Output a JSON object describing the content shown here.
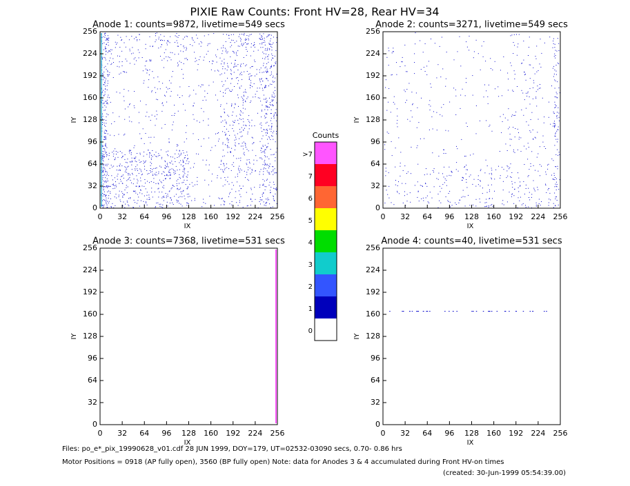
{
  "title": "PIXIE Raw Counts:  Front HV=28, Rear HV=34",
  "axes": {
    "xlabel": "IX",
    "ylabel": "IY",
    "xlim": [
      0,
      256
    ],
    "ylim": [
      0,
      256
    ],
    "ticks": [
      0,
      32,
      64,
      96,
      128,
      160,
      192,
      224,
      256
    ]
  },
  "panels": [
    {
      "title": "Anode 1: counts=9872, livetime=549 secs"
    },
    {
      "title": "Anode 2: counts=3271, livetime=549 secs"
    },
    {
      "title": "Anode 3: counts=7368, livetime=531 secs"
    },
    {
      "title": "Anode 4: counts=40, livetime=531 secs"
    }
  ],
  "colorbar": {
    "title": "Counts",
    "levels": [
      {
        "label": ">7",
        "color": "#ff55ff"
      },
      {
        "label": "7",
        "color": "#ff0022"
      },
      {
        "label": "6",
        "color": "#ff6633"
      },
      {
        "label": "5",
        "color": "#ffff00"
      },
      {
        "label": "4",
        "color": "#00dd00"
      },
      {
        "label": "3",
        "color": "#11cccc"
      },
      {
        "label": "2",
        "color": "#3355ff"
      },
      {
        "label": "1",
        "color": "#0000bb"
      },
      {
        "label": "0",
        "color": "#ffffff"
      }
    ]
  },
  "footer": [
    "Files: po_e*_pix_19990628_v01.cdf    28 JUN 1999, DOY=179, UT=02532-03090 secs,  0.70- 0.86 hrs",
    "Motor Positions = 0918 (AP fully open), 3560 (BP fully open)    Note: data for Anodes 3 & 4 accumulated during Front HV-on times",
    "(created: 30-Jun-1999 05:54:39.00)"
  ]
}
